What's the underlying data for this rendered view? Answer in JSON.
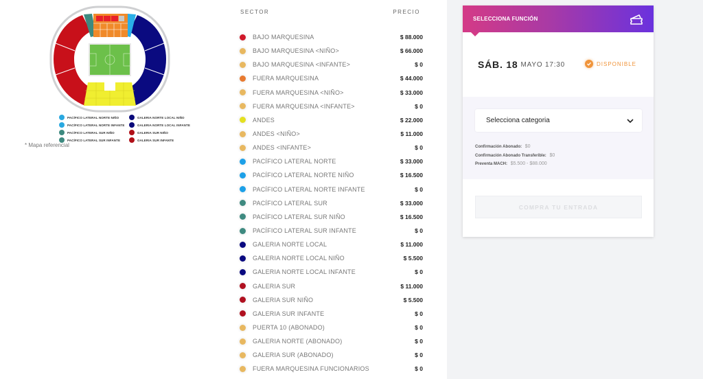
{
  "map": {
    "note": "* Mapa referencial",
    "legend": [
      {
        "label": "PACÍFICO LATERAL NORTE NIÑO",
        "color": "#29a8e0"
      },
      {
        "label": "GALERIA NORTE LOCAL NIÑO",
        "color": "#0a0a7a"
      },
      {
        "label": "PACÍFICO LATERAL NORTE INFANTE",
        "color": "#29a8e0"
      },
      {
        "label": "GALERIA NORTE LOCAL INFANTE",
        "color": "#0a0a7a"
      },
      {
        "label": "PACÍFICO LATERAL SUR NIÑO",
        "color": "#3e8a80"
      },
      {
        "label": "GALERIA SUR NIÑO",
        "color": "#b01018"
      },
      {
        "label": "PACÍFICO LATERAL SUR INFANTE",
        "color": "#3e8a80"
      },
      {
        "label": "GALERIA SUR INFANTE",
        "color": "#b01018"
      }
    ],
    "colors": {
      "galeria_sur": "#c8101a",
      "galeria_norte": "#0a0a80",
      "marquesina_top": "#e8202a",
      "fuera_marquesina": "#f08a2a",
      "andes": "#f0ee30",
      "pacifico_norte": "#29aee8",
      "pacifico_sur": "#3e8a80",
      "field": "#6cc04a",
      "ring": "#cfd0d2"
    }
  },
  "table": {
    "header_sector": "SECTOR",
    "header_price": "PRECIO",
    "rows": [
      {
        "name": "BAJO MARQUESINA",
        "price": "$ 88.000",
        "color": "#d0182a"
      },
      {
        "name": "BAJO MARQUESINA <NIÑO>",
        "price": "$ 66.000",
        "color": "#e8b860"
      },
      {
        "name": "BAJO MARQUESINA <INFANTE>",
        "price": "$ 0",
        "color": "#e8b860"
      },
      {
        "name": "FUERA MARQUESINA",
        "price": "$ 44.000",
        "color": "#e87a30"
      },
      {
        "name": "FUERA MARQUESINA <NIÑO>",
        "price": "$ 33.000",
        "color": "#e8b860"
      },
      {
        "name": "FUERA MARQUESINA <INFANTE>",
        "price": "$ 0",
        "color": "#e8b860"
      },
      {
        "name": "ANDES",
        "price": "$ 22.000",
        "color": "#e4e020"
      },
      {
        "name": "ANDES <NIÑO>",
        "price": "$ 11.000",
        "color": "#e8b860"
      },
      {
        "name": "ANDES <INFANTE>",
        "price": "$ 0",
        "color": "#e8b860"
      },
      {
        "name": "PACÍFICO LATERAL NORTE",
        "price": "$ 33.000",
        "color": "#1ca0e8"
      },
      {
        "name": "PACÍFICO LATERAL NORTE NIÑO",
        "price": "$ 16.500",
        "color": "#1ca0e8"
      },
      {
        "name": "PACÍFICO LATERAL NORTE INFANTE",
        "price": "$ 0",
        "color": "#1ca0e8"
      },
      {
        "name": "PACÍFICO LATERAL SUR",
        "price": "$ 33.000",
        "color": "#3e8a80"
      },
      {
        "name": "PACÍFICO LATERAL SUR NIÑO",
        "price": "$ 16.500",
        "color": "#3e8a80"
      },
      {
        "name": "PACÍFICO LATERAL SUR INFANTE",
        "price": "$ 0",
        "color": "#3e8a80"
      },
      {
        "name": "GALERIA NORTE LOCAL",
        "price": "$ 11.000",
        "color": "#0a0a80"
      },
      {
        "name": "GALERIA NORTE LOCAL NIÑO",
        "price": "$ 5.500",
        "color": "#0a0a80"
      },
      {
        "name": "GALERIA NORTE LOCAL INFANTE",
        "price": "$ 0",
        "color": "#0a0a80"
      },
      {
        "name": "GALERIA SUR",
        "price": "$ 11.000",
        "color": "#b01020"
      },
      {
        "name": "GALERIA SUR NIÑO",
        "price": "$ 5.500",
        "color": "#b01020"
      },
      {
        "name": "GALERIA SUR INFANTE",
        "price": "$ 0",
        "color": "#b01020"
      },
      {
        "name": "PUERTA 10 (ABONADO)",
        "price": "$ 0",
        "color": "#e8b860"
      },
      {
        "name": "GALERIA NORTE (ABONADO)",
        "price": "$ 0",
        "color": "#e8b860"
      },
      {
        "name": "GALERIA SUR (ABONADO)",
        "price": "$ 0",
        "color": "#e8b860"
      },
      {
        "name": "FUERA MARQUESINA FUNCIONARIOS",
        "price": "$ 0",
        "color": "#e8b860"
      }
    ]
  },
  "panel": {
    "header_title": "SELECCIONA FUNCIÓN",
    "header_icon": "ticket-icon",
    "function": {
      "day": "SÁB. 18",
      "month_time": "MAYO 17:30",
      "status": "DISPONIBLE",
      "status_icon": "check-circle-icon",
      "status_color": "#f0943a"
    },
    "category_select": {
      "label": "Selecciona categoria",
      "icon": "chevron-down-icon"
    },
    "info": [
      {
        "key": "Confirmación Abonado:",
        "value": "$0"
      },
      {
        "key": "Confirmación Abonado Transferible:",
        "value": "$0"
      },
      {
        "key": "Preventa MACH:",
        "value": "$5.500 - $88.000"
      }
    ],
    "buy_button": "COMPRA TU ENTRADA",
    "gradient": [
      "#d43a86",
      "#6a32de"
    ]
  }
}
